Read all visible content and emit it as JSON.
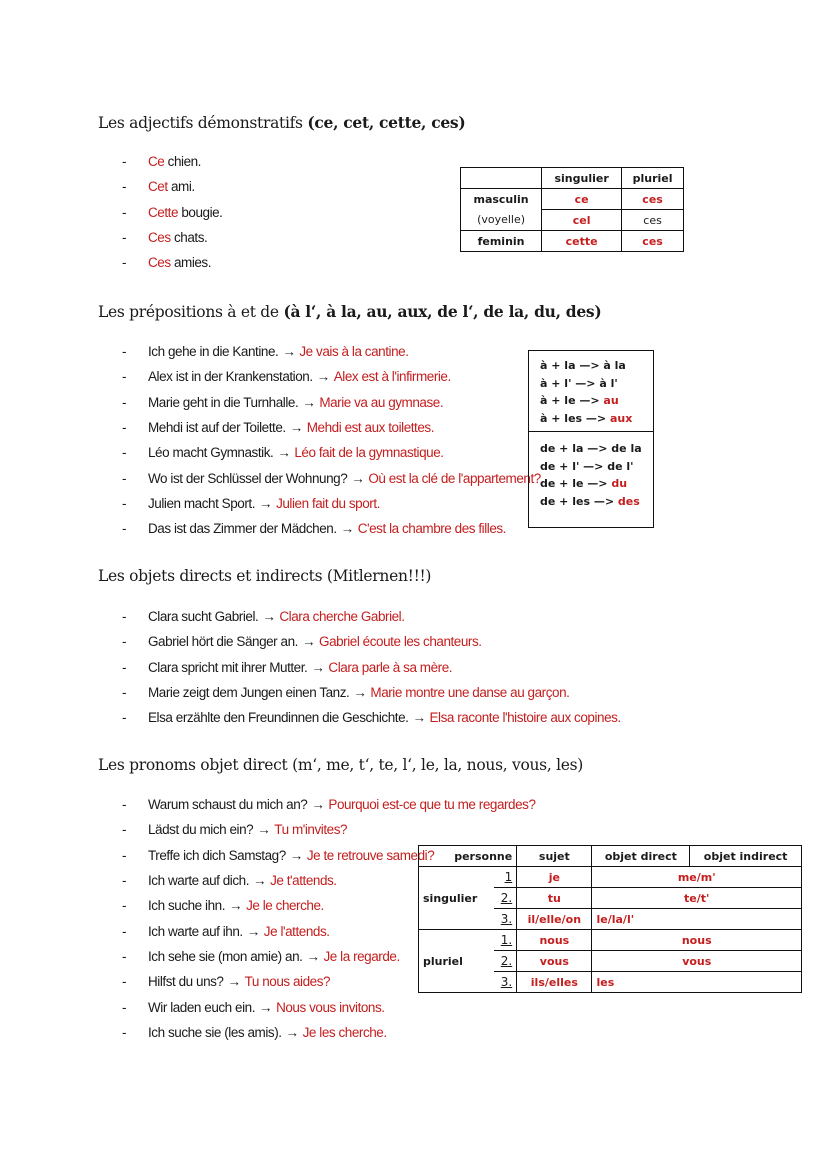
{
  "sections": [
    {
      "title": "Les adjectifs démonstratifs",
      "title_bold": "(ce, cet, cette, ces)",
      "items": [
        {
          "de": "",
          "fr": "Ce",
          "rest": " chien."
        },
        {
          "de": "",
          "fr": "Cet",
          "rest": " ami."
        },
        {
          "de": "",
          "fr": "Cette",
          "rest": " bougie."
        },
        {
          "de": "",
          "fr": "Ces",
          "rest": " chats."
        },
        {
          "de": "",
          "fr": "Ces",
          "rest": " amies."
        }
      ]
    },
    {
      "title": "Les prépositions à et de",
      "title_bold": "(à l‘, à la, au, aux, de l‘, de la, du, des)",
      "items": [
        {
          "de": "Ich gehe in die Kantine.",
          "fr": "Je vais à la cantine."
        },
        {
          "de": "Alex ist in der Krankenstation.",
          "fr": "Alex est à l'infirmerie."
        },
        {
          "de": "Marie geht in die Turnhalle.",
          "fr": "Marie va au gymnase."
        },
        {
          "de": "Mehdi ist auf der Toilette.",
          "fr": "Mehdi est aux toilettes."
        },
        {
          "de": "Léo macht Gymnastik.",
          "fr": "Léo fait de la gymnastique."
        },
        {
          "de": "Wo ist der Schlüssel der Wohnung?",
          "fr": "Où est la clé de l'appartement?"
        },
        {
          "de": "Julien macht Sport.",
          "fr": "Julien fait du sport."
        },
        {
          "de": "Das ist das Zimmer der Mädchen.",
          "fr": "C'est la chambre des filles."
        }
      ]
    },
    {
      "title": "Les objets directs et indirects (Mitlernen!!!)",
      "title_bold": "",
      "items": [
        {
          "de": "Clara sucht Gabriel.",
          "fr": "Clara cherche Gabriel."
        },
        {
          "de": "Gabriel hört die Sänger an.",
          "fr": "Gabriel écoute les chanteurs."
        },
        {
          "de": "Clara spricht mit ihrer Mutter.",
          "fr": "Clara parle à sa mère."
        },
        {
          "de": "Marie zeigt dem Jungen einen Tanz.",
          "fr": "Marie montre une danse au garçon."
        },
        {
          "de": "Elsa erzählte den Freundinnen die Geschichte.",
          "fr": "Elsa raconte l'histoire aux copines."
        }
      ]
    },
    {
      "title": "Les pronoms objet direct (m‘, me, t‘, te, l‘, le, la, nous, vous, les)",
      "title_bold": "",
      "items": [
        {
          "de": "Warum schaust du mich an?",
          "fr": "Pourquoi est-ce que tu me regardes?"
        },
        {
          "de": "Lädst du mich ein?",
          "fr": "Tu m'invites?"
        },
        {
          "de": "Treffe ich dich Samstag?",
          "fr": "Je te retrouve samedi?"
        },
        {
          "de": "Ich warte auf dich.",
          "fr": "Je t'attends."
        },
        {
          "de": "Ich suche ihn.",
          "fr": "Je le cherche."
        },
        {
          "de": "Ich warte auf ihn.",
          "fr": "Je l'attends."
        },
        {
          "de": "Ich sehe sie (mon amie) an.",
          "fr": "Je la regarde."
        },
        {
          "de": "Hilfst du uns?",
          "fr": "Tu nous aides?"
        },
        {
          "de": "Wir laden euch ein.",
          "fr": "Nous vous invitons."
        },
        {
          "de": "Ich suche sie (les amis).",
          "fr": "Je les cherche."
        }
      ]
    }
  ],
  "table1": {
    "h_sing": "singulier",
    "h_plur": "pluriel",
    "r1": "masculin",
    "r1s": "ce",
    "r1p": "ces",
    "r2": "(voyelle)",
    "r2s": "cel",
    "r2p": "ces",
    "r3": "feminin",
    "r3s": "cette",
    "r3p": "ces"
  },
  "table2": {
    "a": [
      "à + la —> à la",
      "à + l' —> à l'",
      "à + le —> ",
      "à + les —> "
    ],
    "a_red": [
      "",
      "",
      "au",
      "aux"
    ],
    "de": [
      "de + la —> de la",
      "de + l' —> de l'",
      "de + le —> ",
      "de + les —> "
    ],
    "de_red": [
      "",
      "",
      "du",
      "des"
    ]
  },
  "table3": {
    "h": [
      "personne",
      "sujet",
      "objet direct",
      "objet indirect"
    ],
    "sing": "singulier",
    "plur": "pluriel",
    "rows": [
      {
        "n": "1",
        "s": "je",
        "o": "me/m'"
      },
      {
        "n": "2.",
        "s": "tu",
        "o": "te/t'"
      },
      {
        "n": "3.",
        "s": "il/elle/on",
        "o": "le/la/l'"
      },
      {
        "n": "1.",
        "s": "nous",
        "o": "nous"
      },
      {
        "n": "2.",
        "s": "vous",
        "o": "vous"
      },
      {
        "n": "3.",
        "s": "ils/elles",
        "o": "les"
      }
    ]
  },
  "arrow": "→",
  "dash": "-"
}
